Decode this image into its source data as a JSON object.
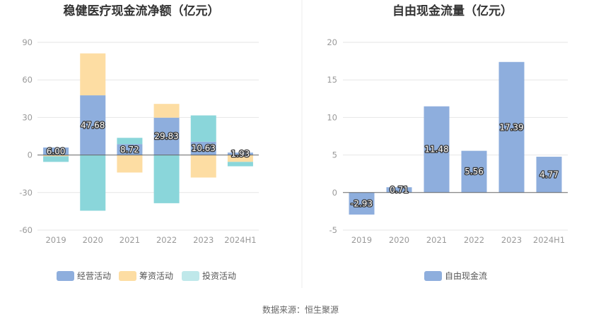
{
  "chart_data": [
    {
      "type": "bar",
      "stacked": true,
      "title": "稳健医疗现金流净额（亿元）",
      "categories": [
        "2019",
        "2020",
        "2021",
        "2022",
        "2023",
        "2024H1"
      ],
      "ylim": [
        -60,
        90
      ],
      "yticks": [
        90,
        60,
        30,
        0,
        -30,
        -60
      ],
      "grid": true,
      "legend_position": "bottom",
      "series": [
        {
          "name": "经营活动",
          "color": "#8eaedd",
          "values": [
            6.0,
            47.68,
            8.72,
            29.83,
            10.63,
            1.93
          ],
          "labels": [
            "6.00",
            "47.68",
            "8.72",
            "29.83",
            "10.63",
            "1.93"
          ]
        },
        {
          "name": "筹资活动",
          "color": "#fddda3",
          "values": [
            -1.0,
            33.5,
            -14.0,
            11.0,
            -18.0,
            -5.5
          ]
        },
        {
          "name": "投资活动",
          "color": "#8ad6da",
          "values": [
            -4.5,
            -44.5,
            5.0,
            -38.5,
            21.0,
            -3.5
          ]
        }
      ]
    },
    {
      "type": "bar",
      "title": "自由现金流量（亿元）",
      "categories": [
        "2019",
        "2020",
        "2021",
        "2022",
        "2023",
        "2024H1"
      ],
      "ylim": [
        -5,
        20
      ],
      "yticks": [
        20,
        15,
        10,
        5,
        0,
        -5
      ],
      "grid": true,
      "legend_position": "bottom",
      "series": [
        {
          "name": "自由现金流",
          "color": "#8eaedd",
          "values": [
            -2.93,
            0.71,
            11.48,
            5.56,
            17.39,
            4.77
          ],
          "labels": [
            "-2.93",
            "0.71",
            "11.48",
            "5.56",
            "17.39",
            "4.77"
          ]
        }
      ]
    }
  ],
  "legend_swatch_colors": [
    "#8eaedd",
    "#fddda3",
    "#bfe8ea"
  ],
  "source": "数据来源：恒生聚源"
}
